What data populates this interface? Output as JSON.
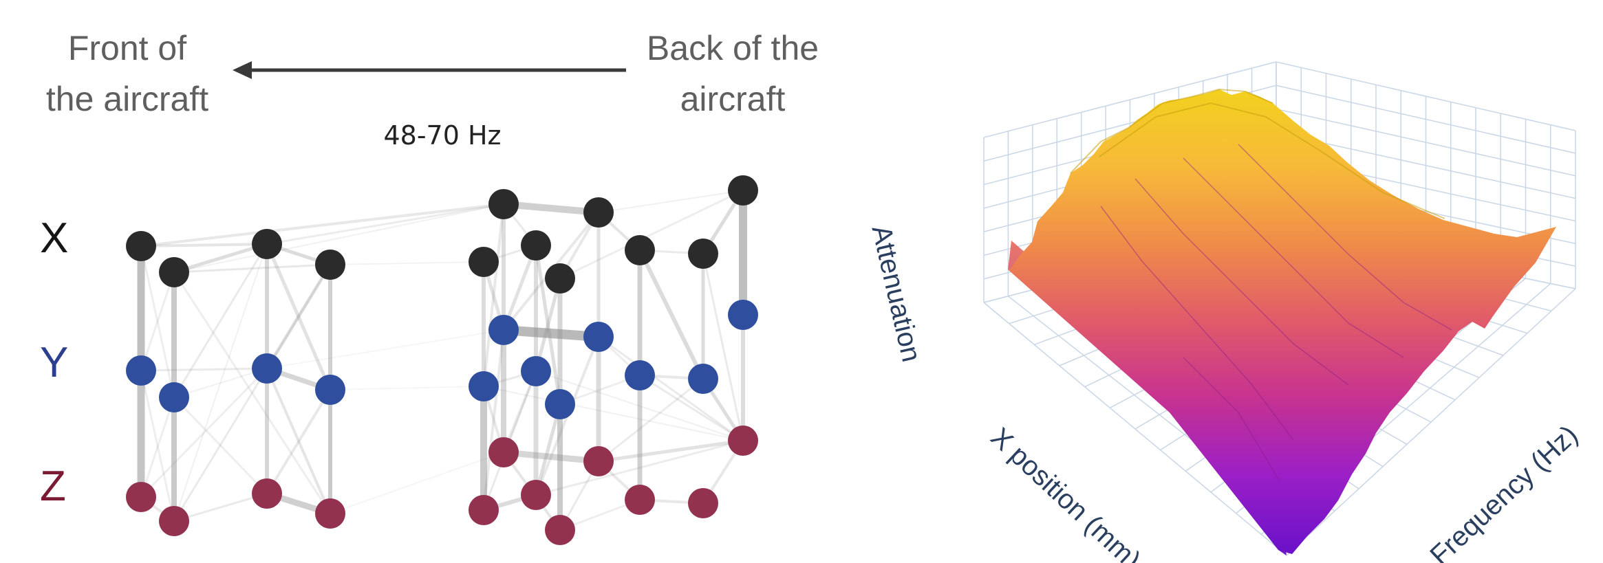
{
  "header": {
    "front_line1": "Front of",
    "front_line2": "the aircraft",
    "back_line1": "Back of the",
    "back_line2": "aircraft",
    "frequency_band": "48-70 Hz"
  },
  "axes": [
    {
      "id": "x",
      "label": "X",
      "color": "#151515"
    },
    {
      "id": "y",
      "label": "Y",
      "color": "#2c3f8f"
    },
    {
      "id": "z",
      "label": "Z",
      "color": "#7a1a33"
    }
  ],
  "surface_plot": {
    "axis_z_label": "Attenuation",
    "axis_x_label": "X position (mm)",
    "axis_y_label": "Frequency (Hz)",
    "colorscale": [
      "#6a11c9",
      "#9b1fc6",
      "#c7338f",
      "#e05a6a",
      "#ef8a4a",
      "#f7b93a",
      "#f2d11e"
    ]
  }
}
